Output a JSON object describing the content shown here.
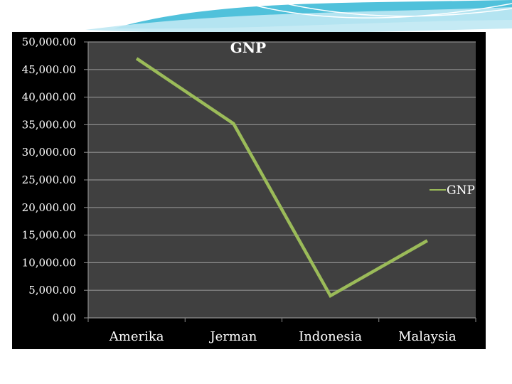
{
  "theme": {
    "panel_color": "#000000",
    "plot_color": "#404040",
    "grid_color": "#8c8c8c",
    "line_color": "#9bbb59",
    "text_color": "#ffffff",
    "accent_color": "#31b6d5"
  },
  "chart_data": {
    "type": "line",
    "title": "GNP",
    "categories": [
      "Amerika",
      "Jerman",
      "Indonesia",
      "Malaysia"
    ],
    "series": [
      {
        "name": "GNP",
        "values": [
          47000,
          35200,
          4000,
          14000
        ]
      }
    ],
    "ylim": [
      0,
      50000
    ],
    "ytick_step": 5000,
    "yticks": [
      "0.00",
      "5,000.00",
      "10,000.00",
      "15,000.00",
      "20,000.00",
      "25,000.00",
      "30,000.00",
      "35,000.00",
      "40,000.00",
      "45,000.00",
      "50,000.00"
    ],
    "grid": true,
    "legend": "right"
  }
}
